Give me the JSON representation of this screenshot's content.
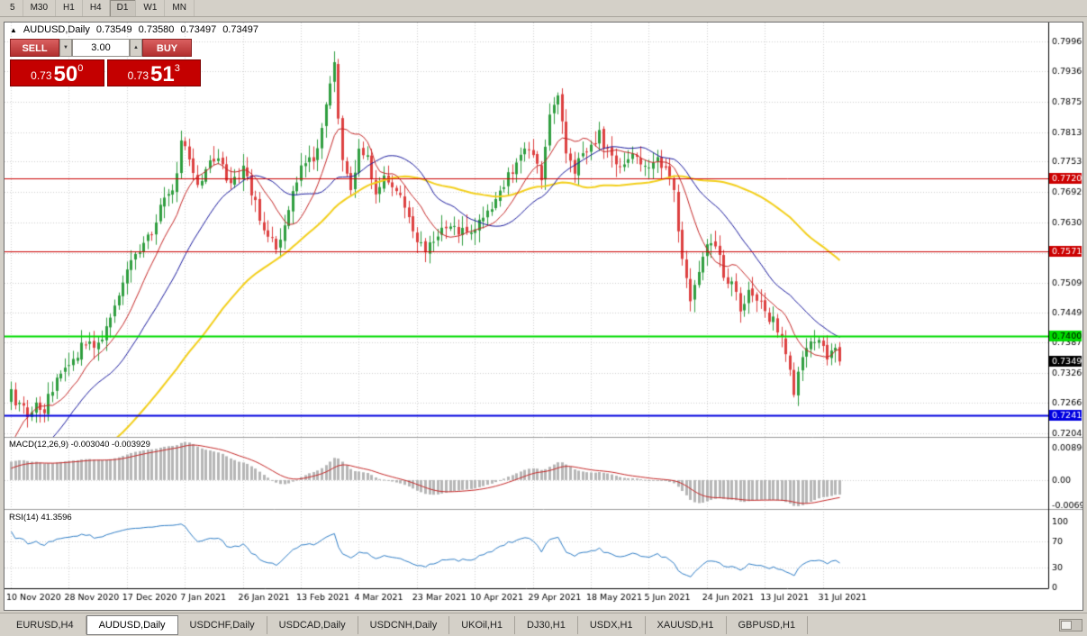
{
  "toolbar": {
    "timeframes": [
      {
        "label": "5",
        "active": false
      },
      {
        "label": "M30",
        "active": false
      },
      {
        "label": "H1",
        "active": false
      },
      {
        "label": "H4",
        "active": false
      },
      {
        "label": "D1",
        "active": true
      },
      {
        "label": "W1",
        "active": false
      },
      {
        "label": "MN",
        "active": false
      }
    ]
  },
  "icons": {
    "chart_marker": "▲",
    "volume_down": "▼",
    "volume_up": "▲"
  },
  "quote_bar": {
    "symbol_label": "AUDUSD,Daily",
    "open": "0.73549",
    "high": "0.73580",
    "low": "0.73497",
    "close": "0.73497"
  },
  "trade_panel": {
    "sell_label": "SELL",
    "buy_label": "BUY",
    "volume": "3.00",
    "sell_price_prefix": "0.73",
    "sell_price_big": "50",
    "sell_price_sup": "0",
    "buy_price_prefix": "0.73",
    "buy_price_big": "51",
    "buy_price_sup": "3"
  },
  "tabs": {
    "items": [
      {
        "label": "EURUSD,H4",
        "active": false
      },
      {
        "label": "AUDUSD,Daily",
        "active": true
      },
      {
        "label": "USDCHF,Daily",
        "active": false
      },
      {
        "label": "USDCAD,Daily",
        "active": false
      },
      {
        "label": "USDCNH,Daily",
        "active": false
      },
      {
        "label": "UKOil,H1",
        "active": false
      },
      {
        "label": "DJ30,H1",
        "active": false
      },
      {
        "label": "USDX,H1",
        "active": false
      },
      {
        "label": "XAUUSD,H1",
        "active": false
      },
      {
        "label": "GBPUSD,H1",
        "active": false
      }
    ]
  },
  "chart_data": {
    "type": "candlestick",
    "symbol": "AUDUSD",
    "timeframe": "Daily",
    "last_close": 0.73497,
    "colors": {
      "grid": "#cfcfcf",
      "candle_up": "#2f9e3f",
      "candle_down": "#dd4040",
      "macd_hist": "#b6b6b6",
      "macd_signal": "#c62828",
      "rsi": "#2f7ec7",
      "price_label_bg": "#000000"
    },
    "y_ticks": [
      "0.79965",
      "0.79365",
      "0.78750",
      "0.78135",
      "0.77535",
      "0.76920",
      "0.76305",
      "0.75690",
      "0.75090",
      "0.74490",
      "0.73875",
      "0.73260",
      "0.72660",
      "0.72045"
    ],
    "x_ticks": [
      {
        "index": 0,
        "label": "10 Nov 2020"
      },
      {
        "index": 14,
        "label": "28 Nov 2020"
      },
      {
        "index": 28,
        "label": "17 Dec 2020"
      },
      {
        "index": 42,
        "label": "7 Jan 2021"
      },
      {
        "index": 56,
        "label": "26 Jan 2021"
      },
      {
        "index": 70,
        "label": "13 Feb 2021"
      },
      {
        "index": 84,
        "label": "4 Mar 2021"
      },
      {
        "index": 98,
        "label": "23 Mar 2021"
      },
      {
        "index": 112,
        "label": "10 Apr 2021"
      },
      {
        "index": 126,
        "label": "29 Apr 2021"
      },
      {
        "index": 140,
        "label": "18 May 2021"
      },
      {
        "index": 154,
        "label": "5 Jun 2021"
      },
      {
        "index": 168,
        "label": "24 Jun 2021"
      },
      {
        "index": 182,
        "label": "13 Jul 2021"
      },
      {
        "index": 196,
        "label": "31 Jul 2021"
      }
    ],
    "h_lines": [
      {
        "value": 0.772,
        "label": "0.77200",
        "color": "#cc0000",
        "line_width": 1,
        "label_text_color": "#ffffff"
      },
      {
        "value": 0.75716,
        "label": "0.75716",
        "color": "#cc0000",
        "line_width": 1,
        "label_text_color": "#ffffff"
      },
      {
        "value": 0.74007,
        "label": "0.74007",
        "color": "#00dc00",
        "line_width": 2,
        "label_text_color": "#000000"
      },
      {
        "value": 0.72411,
        "label": "0.72411",
        "color": "#0000e0",
        "line_width": 2,
        "label_text_color": "#ffffff"
      }
    ],
    "current_price": {
      "value": 0.73497,
      "label": "0.73497"
    },
    "moving_averages": [
      {
        "name": "fast",
        "period": 10,
        "color": "#c62828",
        "width": 1
      },
      {
        "name": "mid",
        "period": 24,
        "color": "#1a1a9e",
        "width": 1
      },
      {
        "name": "slow",
        "period": 60,
        "color": "#f3cf1b",
        "width": 2
      }
    ],
    "close_anchors": [
      [
        -60,
        0.7005
      ],
      [
        -52,
        0.704
      ],
      [
        -46,
        0.702
      ],
      [
        -40,
        0.7075
      ],
      [
        -34,
        0.7045
      ],
      [
        -28,
        0.7
      ],
      [
        -22,
        0.706
      ],
      [
        -16,
        0.712
      ],
      [
        -10,
        0.706
      ],
      [
        -5,
        0.716
      ],
      [
        -1,
        0.726
      ],
      [
        0,
        0.7285
      ],
      [
        2,
        0.7258
      ],
      [
        4,
        0.724
      ],
      [
        6,
        0.7268
      ],
      [
        8,
        0.7252
      ],
      [
        10,
        0.73
      ],
      [
        12,
        0.7322
      ],
      [
        14,
        0.734
      ],
      [
        16,
        0.7362
      ],
      [
        18,
        0.739
      ],
      [
        20,
        0.7372
      ],
      [
        22,
        0.7396
      ],
      [
        24,
        0.7428
      ],
      [
        26,
        0.7478
      ],
      [
        28,
        0.7528
      ],
      [
        30,
        0.7566
      ],
      [
        32,
        0.759
      ],
      [
        34,
        0.7618
      ],
      [
        36,
        0.7658
      ],
      [
        38,
        0.7688
      ],
      [
        40,
        0.7718
      ],
      [
        41,
        0.7798
      ],
      [
        43,
        0.7768
      ],
      [
        45,
        0.7712
      ],
      [
        47,
        0.773
      ],
      [
        49,
        0.7764
      ],
      [
        51,
        0.774
      ],
      [
        53,
        0.7702
      ],
      [
        56,
        0.7744
      ],
      [
        58,
        0.769
      ],
      [
        60,
        0.764
      ],
      [
        62,
        0.7602
      ],
      [
        64,
        0.7586
      ],
      [
        66,
        0.7624
      ],
      [
        68,
        0.7688
      ],
      [
        70,
        0.774
      ],
      [
        72,
        0.7754
      ],
      [
        74,
        0.7776
      ],
      [
        76,
        0.7858
      ],
      [
        77,
        0.7918
      ],
      [
        78,
        0.7962
      ],
      [
        79,
        0.783
      ],
      [
        80,
        0.7758
      ],
      [
        82,
        0.7706
      ],
      [
        84,
        0.7778
      ],
      [
        86,
        0.7768
      ],
      [
        88,
        0.7692
      ],
      [
        90,
        0.7718
      ],
      [
        92,
        0.77
      ],
      [
        94,
        0.7678
      ],
      [
        96,
        0.7638
      ],
      [
        98,
        0.7602
      ],
      [
        100,
        0.758
      ],
      [
        102,
        0.7596
      ],
      [
        104,
        0.7612
      ],
      [
        106,
        0.7624
      ],
      [
        108,
        0.7604
      ],
      [
        110,
        0.7616
      ],
      [
        112,
        0.7626
      ],
      [
        114,
        0.7644
      ],
      [
        116,
        0.7664
      ],
      [
        118,
        0.77
      ],
      [
        120,
        0.7724
      ],
      [
        122,
        0.7754
      ],
      [
        124,
        0.7776
      ],
      [
        126,
        0.776
      ],
      [
        128,
        0.7726
      ],
      [
        130,
        0.7838
      ],
      [
        132,
        0.7878
      ],
      [
        134,
        0.7782
      ],
      [
        136,
        0.7732
      ],
      [
        138,
        0.7768
      ],
      [
        140,
        0.7786
      ],
      [
        142,
        0.7806
      ],
      [
        144,
        0.7772
      ],
      [
        146,
        0.7744
      ],
      [
        148,
        0.7756
      ],
      [
        150,
        0.777
      ],
      [
        152,
        0.7746
      ],
      [
        154,
        0.774
      ],
      [
        156,
        0.7756
      ],
      [
        158,
        0.7736
      ],
      [
        160,
        0.77
      ],
      [
        161,
        0.7622
      ],
      [
        162,
        0.756
      ],
      [
        164,
        0.748
      ],
      [
        166,
        0.754
      ],
      [
        168,
        0.758
      ],
      [
        170,
        0.759
      ],
      [
        172,
        0.7522
      ],
      [
        174,
        0.7502
      ],
      [
        176,
        0.7462
      ],
      [
        178,
        0.749
      ],
      [
        180,
        0.7478
      ],
      [
        182,
        0.745
      ],
      [
        184,
        0.7432
      ],
      [
        186,
        0.739
      ],
      [
        188,
        0.7322
      ],
      [
        189,
        0.7292
      ],
      [
        191,
        0.7358
      ],
      [
        193,
        0.7386
      ],
      [
        195,
        0.7402
      ],
      [
        197,
        0.7356
      ],
      [
        199,
        0.7376
      ],
      [
        200,
        0.735
      ]
    ],
    "macd": {
      "label": "MACD(12,26,9) -0.003040 -0.003929",
      "fast": 12,
      "slow": 26,
      "signal_period": 9,
      "ticks": [
        {
          "value": 0.008903,
          "label": "0.008903",
          "dotted": false
        },
        {
          "value": 0,
          "label": "0.00",
          "dotted": true
        },
        {
          "value": -0.00697,
          "label": "-0.00697",
          "dotted": false
        }
      ]
    },
    "rsi": {
      "label": "RSI(14) 41.3596",
      "period": 14,
      "ticks": [
        {
          "value": 100,
          "label": "100",
          "dotted": false
        },
        {
          "value": 70,
          "label": "70",
          "dotted": true
        },
        {
          "value": 30,
          "label": "30",
          "dotted": true
        },
        {
          "value": 0,
          "label": "0",
          "dotted": false
        }
      ]
    }
  }
}
